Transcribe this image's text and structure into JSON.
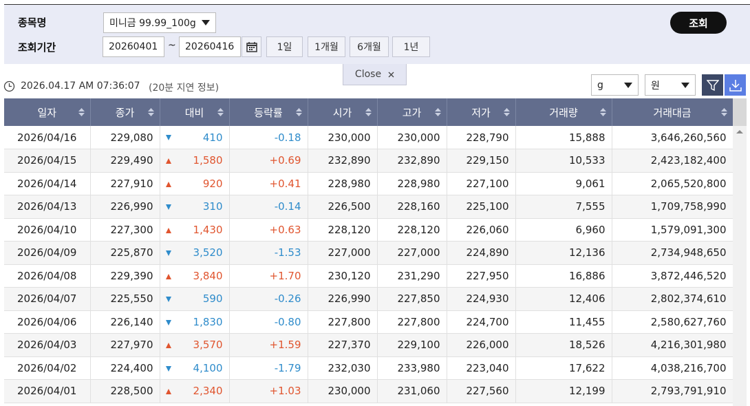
{
  "filters": {
    "item_label": "종목명",
    "item_value": "미니금 99.99_100g",
    "period_label": "조회기간",
    "start_date": "20260401",
    "tilde": "~",
    "end_date": "20260416",
    "period_buttons": [
      "1일",
      "1개월",
      "6개월",
      "1년"
    ],
    "search_button": "조회",
    "close": "Close"
  },
  "status": {
    "timestamp": "2026.04.17 AM 07:36:07",
    "delay_note": "(20분 지연 정보)",
    "unit_select": "g",
    "currency_select": "원"
  },
  "table": {
    "headers": [
      "일자",
      "종가",
      "대비",
      "등락률",
      "시가",
      "고가",
      "저가",
      "거래량",
      "거래대금"
    ],
    "rows": [
      [
        "2026/04/16",
        "229,080",
        "410",
        "-0.18",
        "230,000",
        "230,000",
        "228,790",
        "15,888",
        "3,646,260,560"
      ],
      [
        "2026/04/15",
        "229,490",
        "1,580",
        "+0.69",
        "232,890",
        "232,890",
        "229,150",
        "10,533",
        "2,423,182,400"
      ],
      [
        "2026/04/14",
        "227,910",
        "920",
        "+0.41",
        "228,980",
        "228,980",
        "227,100",
        "9,061",
        "2,065,520,800"
      ],
      [
        "2026/04/13",
        "226,990",
        "310",
        "-0.14",
        "226,500",
        "228,160",
        "225,100",
        "7,555",
        "1,709,758,990"
      ],
      [
        "2026/04/10",
        "227,300",
        "1,430",
        "+0.63",
        "228,120",
        "228,120",
        "226,060",
        "6,960",
        "1,579,091,300"
      ],
      [
        "2026/04/09",
        "225,870",
        "3,520",
        "-1.53",
        "227,000",
        "227,000",
        "224,890",
        "12,136",
        "2,734,948,650"
      ],
      [
        "2026/04/08",
        "229,390",
        "3,840",
        "+1.70",
        "230,120",
        "231,290",
        "227,950",
        "16,886",
        "3,872,446,520"
      ],
      [
        "2026/04/07",
        "225,550",
        "590",
        "-0.26",
        "226,990",
        "227,850",
        "224,930",
        "12,406",
        "2,802,374,610"
      ],
      [
        "2026/04/06",
        "226,140",
        "1,830",
        "-0.80",
        "227,800",
        "227,800",
        "224,700",
        "11,455",
        "2,580,627,760"
      ],
      [
        "2026/04/03",
        "227,970",
        "3,570",
        "+1.59",
        "227,370",
        "229,100",
        "226,000",
        "18,526",
        "4,216,301,980"
      ],
      [
        "2026/04/02",
        "224,400",
        "4,100",
        "-1.79",
        "232,030",
        "233,980",
        "223,040",
        "17,622",
        "4,038,216,700"
      ],
      [
        "2026/04/01",
        "228,500",
        "2,340",
        "+1.03",
        "230,000",
        "231,060",
        "227,560",
        "12,199",
        "2,793,791,910"
      ]
    ]
  }
}
